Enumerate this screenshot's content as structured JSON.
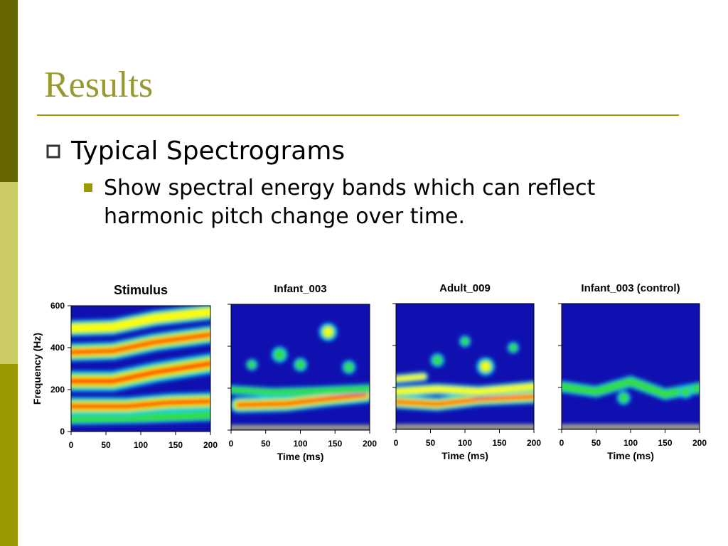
{
  "header": {
    "title": "Results"
  },
  "bullets": [
    {
      "text": "Typical Spectrograms",
      "sub": [
        {
          "lines": [
            "Show spectral energy bands which can reflect",
            "harmonic pitch change over time."
          ]
        }
      ]
    }
  ],
  "chart_data": [
    {
      "type": "heatmap",
      "title": "Stimulus",
      "ylabel": "Frequency (Hz)",
      "xlim": [
        0,
        200
      ],
      "xticks": [
        0,
        50,
        100,
        150,
        200
      ],
      "ylim": [
        0,
        600
      ],
      "yticks": [
        0,
        200,
        400,
        600
      ],
      "show_ytick_labels": true
    },
    {
      "type": "heatmap",
      "title": "Infant_003",
      "xlabel": "Time (ms)",
      "xlim": [
        0,
        200
      ],
      "xticks": [
        0,
        50,
        100,
        150,
        200
      ],
      "ylim": [
        0,
        600
      ],
      "yticks": [
        0,
        200,
        400,
        600
      ],
      "show_ytick_labels": false
    },
    {
      "type": "heatmap",
      "title": "Adult_009",
      "xlabel": "Time (ms)",
      "xlim": [
        0,
        200
      ],
      "xticks": [
        0,
        50,
        100,
        150,
        200
      ],
      "ylim": [
        0,
        600
      ],
      "yticks": [
        0,
        200,
        400,
        600
      ],
      "show_ytick_labels": false
    },
    {
      "type": "heatmap",
      "title": "Infant_003 (control)",
      "xlabel": "Time (ms)",
      "xlim": [
        0,
        200
      ],
      "xticks": [
        0,
        50,
        100,
        150,
        200
      ],
      "ylim": [
        0,
        600
      ],
      "yticks": [
        0,
        200,
        400,
        600
      ],
      "show_ytick_labels": false
    }
  ]
}
